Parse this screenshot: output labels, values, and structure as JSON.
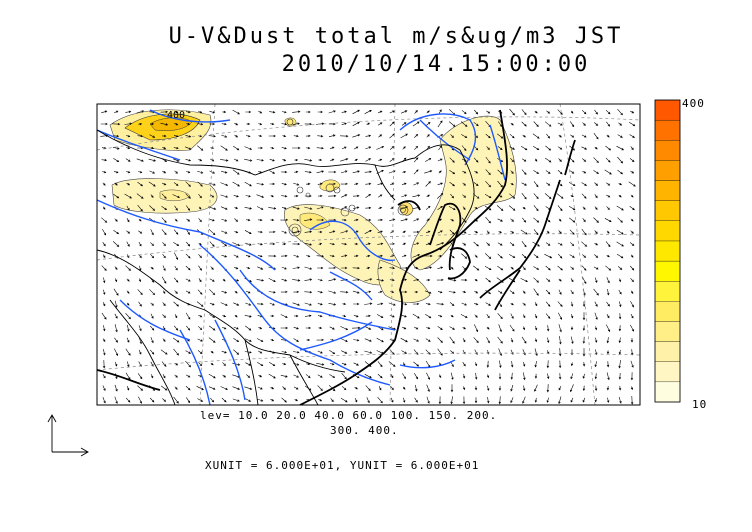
{
  "title": {
    "line1": "U-V&Dust total m/s&ug/m3 JST",
    "line2": "2010/10/14.15:00:00"
  },
  "levels": {
    "line1": "lev= 10.0 20.0 40.0 60.0 100. 150. 200.",
    "line2": "300. 400."
  },
  "units_text": "XUNIT = 6.000E+01, YUNIT = 6.000E+01",
  "colorbar": {
    "max_label": "400",
    "min_label": "10",
    "colors": [
      "#fffde0",
      "#fff6c4",
      "#fff2a8",
      "#ffef86",
      "#ffec62",
      "#fff33c",
      "#fff700",
      "#ffe800",
      "#ffd800",
      "#ffc800",
      "#ffb500",
      "#ffa000",
      "#ff8a00",
      "#ff7200",
      "#ff5800"
    ]
  },
  "contour_label": "400",
  "colors": {
    "river": "#1e5aff",
    "dust_fill": "#fff4b8",
    "dust_hot": "#ffd21a",
    "coast": "#000000"
  }
}
